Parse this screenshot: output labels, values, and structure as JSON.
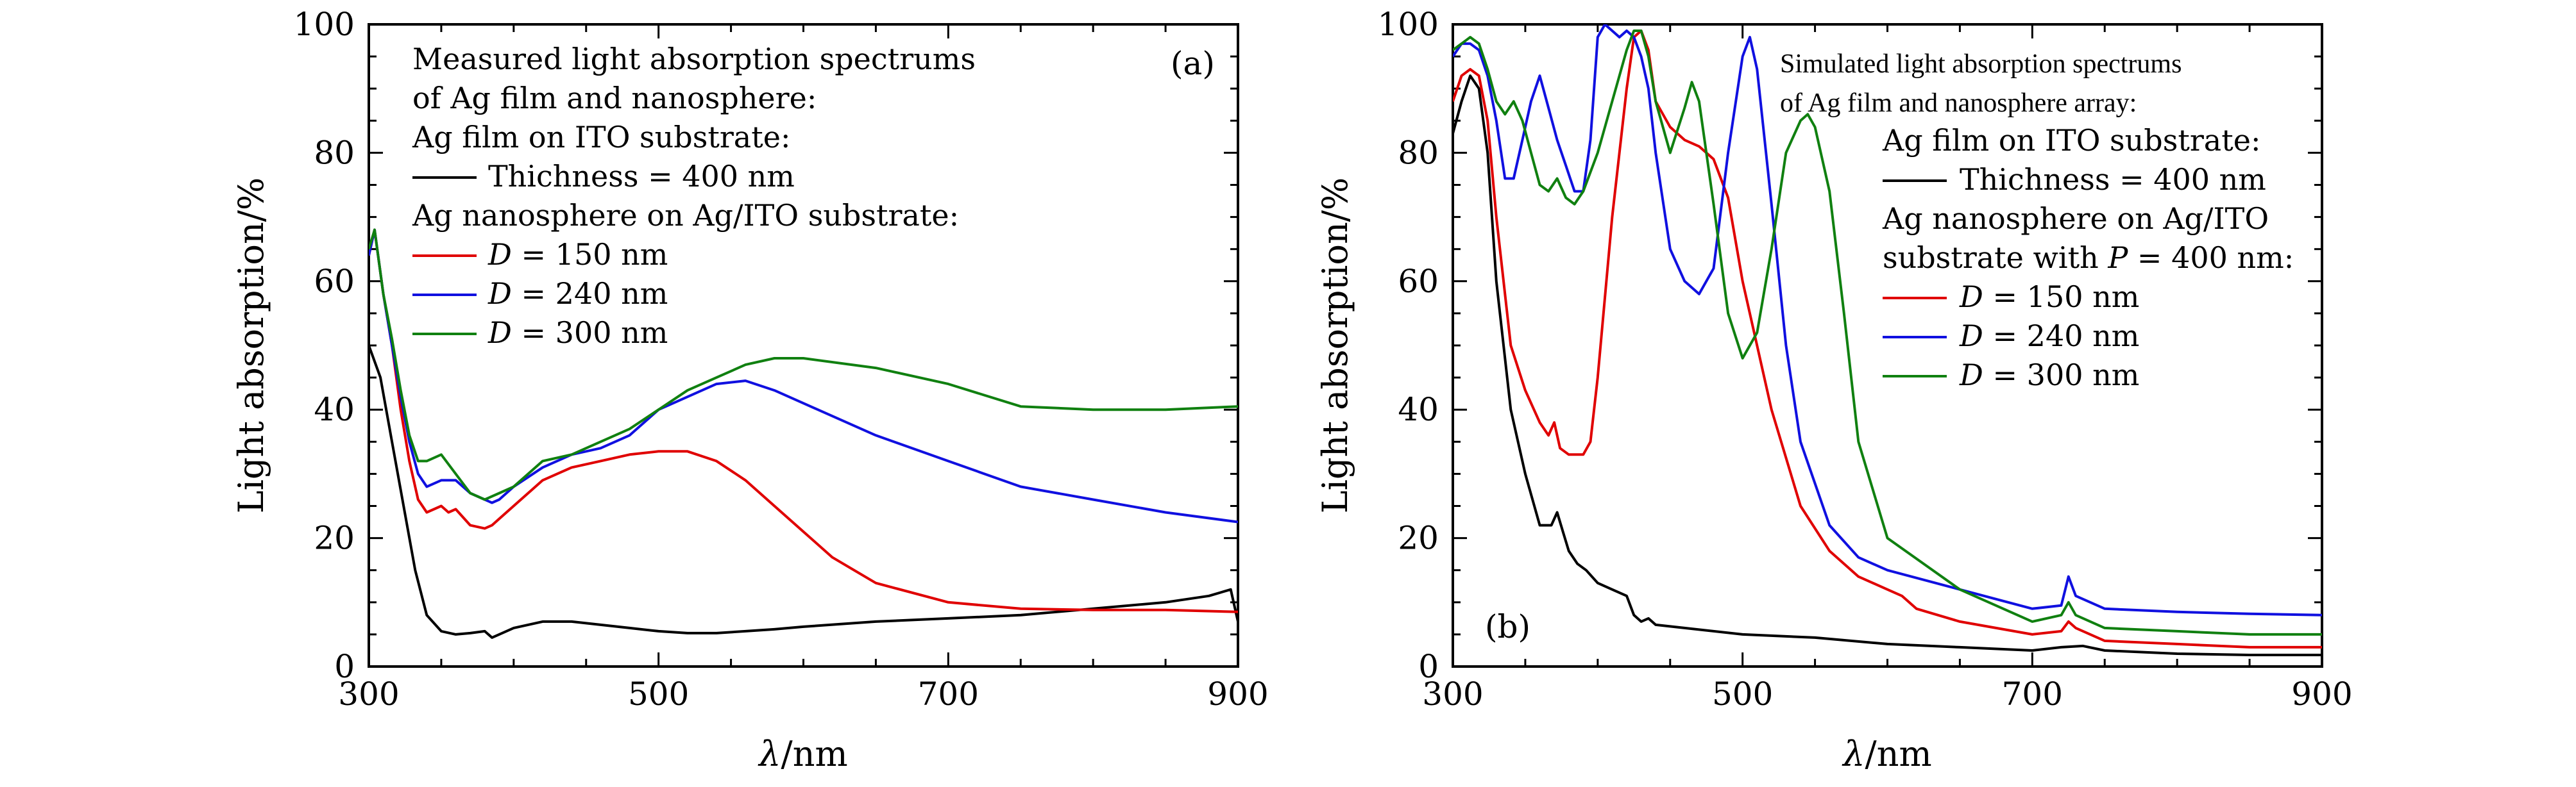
{
  "chart_data": [
    {
      "type": "line",
      "panel_label": "(a)",
      "xlabel": "λ/nm",
      "ylabel": "Light absorption/%",
      "xlim": [
        300,
        900
      ],
      "ylim": [
        0,
        100
      ],
      "xticks": [
        300,
        500,
        700,
        900
      ],
      "yticks": [
        0,
        20,
        40,
        60,
        80,
        100
      ],
      "grid": false,
      "legend": {
        "placement": "top-left",
        "lines": [
          {
            "text": "Measured light absorption spectrums"
          },
          {
            "text": "of Ag film and nanosphere:"
          },
          {
            "text": "Ag film on ITO substrate:"
          },
          {
            "text": "Thichness = 400 nm",
            "series": 0
          },
          {
            "text": "Ag nanosphere on Ag/ITO substrate:"
          },
          {
            "text": "D = 150 nm",
            "series": 1
          },
          {
            "text": "D = 240 nm",
            "series": 2
          },
          {
            "text": "D = 300 nm",
            "series": 3
          }
        ]
      },
      "series": [
        {
          "name": "Thichness = 400 nm",
          "color": "#000000",
          "x": [
            300,
            308,
            316,
            324,
            332,
            340,
            350,
            360,
            370,
            380,
            385,
            390,
            400,
            420,
            440,
            460,
            480,
            500,
            520,
            540,
            560,
            580,
            600,
            650,
            700,
            750,
            800,
            850,
            880,
            895,
            900
          ],
          "y": [
            50,
            45,
            35,
            25,
            15,
            8,
            5.5,
            5,
            5.2,
            5.5,
            4.5,
            5,
            6,
            7,
            7,
            6.5,
            6,
            5.5,
            5.2,
            5.2,
            5.5,
            5.8,
            6.2,
            7,
            7.5,
            8,
            9,
            10,
            11,
            12,
            7
          ]
        },
        {
          "name": "D = 150 nm",
          "color": "#e00000",
          "x": [
            300,
            304,
            310,
            316,
            322,
            328,
            334,
            340,
            350,
            355,
            360,
            370,
            380,
            385,
            390,
            400,
            420,
            440,
            460,
            480,
            500,
            520,
            540,
            560,
            580,
            600,
            620,
            650,
            700,
            750,
            800,
            850,
            900
          ],
          "y": [
            64,
            68,
            58,
            50,
            40,
            32,
            26,
            24,
            25,
            24,
            24.5,
            22,
            21.5,
            22,
            23,
            25,
            29,
            31,
            32,
            33,
            33.5,
            33.5,
            32,
            29,
            25,
            21,
            17,
            13,
            10,
            9,
            8.8,
            8.8,
            8.5
          ]
        },
        {
          "name": "D = 240 nm",
          "color": "#1010e0",
          "x": [
            300,
            304,
            310,
            316,
            322,
            328,
            334,
            340,
            350,
            360,
            370,
            380,
            385,
            390,
            400,
            420,
            440,
            460,
            480,
            500,
            520,
            540,
            560,
            580,
            600,
            650,
            700,
            750,
            800,
            850,
            900
          ],
          "y": [
            64,
            68,
            58,
            50,
            42,
            35,
            30,
            28,
            29,
            29,
            27,
            26,
            25.5,
            26,
            28,
            31,
            33,
            34,
            36,
            40,
            42,
            44,
            44.5,
            43,
            41,
            36,
            32,
            28,
            26,
            24,
            22.5
          ]
        },
        {
          "name": "D = 300 nm",
          "color": "#108010",
          "x": [
            300,
            304,
            310,
            316,
            322,
            328,
            334,
            340,
            350,
            360,
            370,
            380,
            390,
            400,
            420,
            440,
            460,
            480,
            500,
            520,
            540,
            560,
            580,
            600,
            650,
            700,
            750,
            800,
            850,
            900
          ],
          "y": [
            65,
            68,
            58,
            51,
            43,
            36,
            32,
            32,
            33,
            30,
            27,
            26,
            27,
            28,
            32,
            33,
            35,
            37,
            40,
            43,
            45,
            47,
            48,
            48,
            46.5,
            44,
            40.5,
            40,
            40,
            40.5
          ]
        }
      ]
    },
    {
      "type": "line",
      "panel_label": "(b)",
      "xlabel": "λ/nm",
      "ylabel": "Light absorption/%",
      "xlim": [
        300,
        900
      ],
      "ylim": [
        0,
        100
      ],
      "xticks": [
        300,
        500,
        700,
        900
      ],
      "yticks": [
        0,
        20,
        40,
        60,
        80,
        100
      ],
      "grid": false,
      "legend": {
        "placement": "top-right",
        "lines": [
          {
            "text": "Simulated light absorption spectrums"
          },
          {
            "text": "of Ag film and nanosphere array:"
          },
          {
            "text": "Ag film on ITO substrate:"
          },
          {
            "text": "Thichness = 400 nm",
            "series": 0
          },
          {
            "text": "Ag nanosphere on Ag/ITO"
          },
          {
            "text": "substrate with P = 400 nm:"
          },
          {
            "text": "D = 150 nm",
            "series": 1
          },
          {
            "text": "D = 240 nm",
            "series": 2
          },
          {
            "text": "D = 300 nm",
            "series": 3
          }
        ]
      },
      "series": [
        {
          "name": "Thichness = 400 nm",
          "color": "#000000",
          "x": [
            300,
            306,
            312,
            318,
            324,
            330,
            340,
            350,
            360,
            368,
            372,
            376,
            380,
            386,
            392,
            400,
            410,
            420,
            425,
            430,
            435,
            440,
            460,
            500,
            550,
            600,
            650,
            700,
            720,
            735,
            750,
            800,
            850,
            900
          ],
          "y": [
            83,
            88,
            92,
            90,
            80,
            60,
            40,
            30,
            22,
            22,
            24,
            21,
            18,
            16,
            15,
            13,
            12,
            11,
            8,
            7,
            7.5,
            6.5,
            6,
            5,
            4.5,
            3.5,
            3,
            2.5,
            3,
            3.2,
            2.5,
            2,
            1.8,
            1.8
          ]
        },
        {
          "name": "D = 150 nm",
          "color": "#e00000",
          "x": [
            300,
            306,
            312,
            318,
            324,
            330,
            340,
            350,
            360,
            366,
            370,
            374,
            380,
            390,
            395,
            400,
            410,
            420,
            425,
            430,
            435,
            440,
            450,
            460,
            470,
            480,
            490,
            500,
            520,
            540,
            560,
            580,
            600,
            610,
            620,
            650,
            700,
            720,
            725,
            730,
            750,
            800,
            850,
            900
          ],
          "y": [
            88,
            92,
            93,
            92,
            85,
            70,
            50,
            43,
            38,
            36,
            38,
            34,
            33,
            33,
            35,
            45,
            70,
            90,
            98,
            99,
            96,
            88,
            84,
            82,
            81,
            79,
            73,
            60,
            40,
            25,
            18,
            14,
            12,
            11,
            9,
            7,
            5,
            5.5,
            7,
            6,
            4,
            3.5,
            3,
            3
          ]
        },
        {
          "name": "D = 240 nm",
          "color": "#1010e0",
          "x": [
            300,
            306,
            312,
            318,
            324,
            330,
            336,
            342,
            348,
            354,
            360,
            366,
            372,
            378,
            384,
            390,
            395,
            400,
            405,
            410,
            415,
            420,
            425,
            430,
            435,
            440,
            450,
            460,
            470,
            480,
            490,
            500,
            505,
            510,
            520,
            530,
            540,
            560,
            580,
            600,
            650,
            700,
            720,
            725,
            730,
            750,
            800,
            850,
            900
          ],
          "y": [
            95,
            97,
            97,
            96,
            92,
            85,
            76,
            76,
            82,
            88,
            92,
            87,
            82,
            78,
            74,
            74,
            82,
            98,
            100,
            99,
            98,
            99,
            98,
            95,
            90,
            80,
            65,
            60,
            58,
            62,
            80,
            95,
            98,
            93,
            72,
            50,
            35,
            22,
            17,
            15,
            12,
            9,
            9.5,
            14,
            11,
            9,
            8.5,
            8.2,
            8
          ]
        },
        {
          "name": "D = 300 nm",
          "color": "#108010",
          "x": [
            300,
            306,
            312,
            318,
            324,
            330,
            336,
            342,
            348,
            354,
            360,
            366,
            372,
            378,
            384,
            390,
            400,
            410,
            420,
            425,
            430,
            435,
            440,
            450,
            460,
            465,
            470,
            480,
            490,
            500,
            510,
            520,
            530,
            540,
            545,
            550,
            560,
            570,
            580,
            600,
            650,
            700,
            720,
            725,
            730,
            750,
            800,
            850,
            900
          ],
          "y": [
            96,
            97,
            98,
            97,
            93,
            88,
            86,
            88,
            85,
            80,
            75,
            74,
            76,
            73,
            72,
            74,
            80,
            88,
            96,
            99,
            99,
            95,
            88,
            80,
            87,
            91,
            88,
            72,
            55,
            48,
            52,
            65,
            80,
            85,
            86,
            84,
            74,
            55,
            35,
            20,
            12,
            7,
            8,
            10,
            8,
            6,
            5.5,
            5,
            5
          ]
        }
      ]
    }
  ]
}
